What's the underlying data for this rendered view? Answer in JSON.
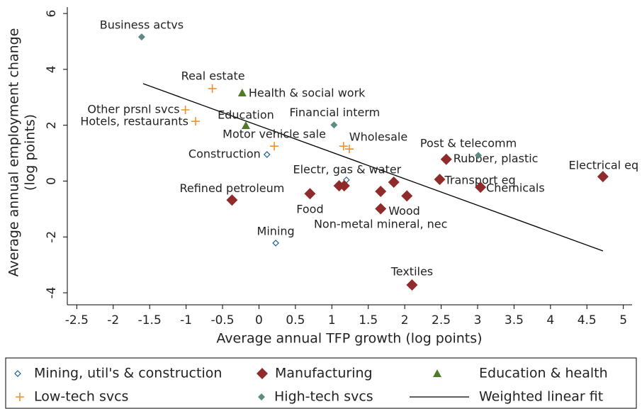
{
  "chart_data": {
    "type": "scatter",
    "xlabel": "Average annual TFP growth (log points)",
    "ylabel": [
      "Average annual employment change",
      "(log points)"
    ],
    "xlim": [
      -2.63,
      5.12
    ],
    "ylim": [
      -4.43,
      6.23
    ],
    "xticks": [
      -2.5,
      -2,
      -1.5,
      -1,
      -0.5,
      0,
      0.5,
      1,
      1.5,
      2,
      2.5,
      3,
      3.5,
      4,
      4.5,
      5
    ],
    "yticks": [
      -4,
      -2,
      0,
      2,
      4,
      6
    ],
    "series": [
      {
        "name": "Mining, util's & construction",
        "color": "#1f5f8b",
        "marker": "hollow-diamond",
        "x": [
          0.11,
          1.2,
          0.23
        ],
        "y": [
          0.95,
          0.04,
          -2.22
        ],
        "labels": [
          "Construction",
          "Electr, gas  & water",
          "Mining"
        ]
      },
      {
        "name": "Manufacturing",
        "color": "#902b2b",
        "marker": "diamond",
        "x": [
          -0.37,
          0.7,
          1.1,
          1.17,
          1.67,
          1.85,
          1.67,
          2.03,
          2.57,
          2.48,
          3.04,
          4.72,
          2.1
        ],
        "y": [
          -0.68,
          -0.45,
          -0.17,
          -0.17,
          -0.37,
          -0.04,
          -0.99,
          -0.53,
          0.78,
          0.06,
          -0.22,
          0.16,
          -3.72
        ],
        "labels": [
          "Refined petroleum",
          "Food",
          null,
          null,
          "Non-metal mineral, nec",
          null,
          "Wood",
          null,
          "Rubber, plastic",
          "Transport eq",
          "Chemicals",
          "Electrical eq",
          "Textiles"
        ]
      },
      {
        "name": "Education & health",
        "color": "#4f7a28",
        "marker": "triangle",
        "x": [
          -0.23,
          -0.18
        ],
        "y": [
          3.16,
          1.99
        ],
        "labels": [
          "Health & social work",
          "Education"
        ]
      },
      {
        "name": "Low-tech svcs",
        "color": "#f0902a",
        "marker": "plus",
        "x": [
          -0.64,
          -1.01,
          -0.87,
          0.21,
          1.16,
          1.24
        ],
        "y": [
          3.31,
          2.55,
          2.14,
          1.25,
          1.25,
          1.15
        ],
        "labels": [
          "Real estate",
          "Other prsnl svcs",
          "Hotels, restaurants",
          "Motor vehicle sale",
          "Wholesale",
          null
        ]
      },
      {
        "name": "High-tech svcs",
        "color": "#5d8b82",
        "marker": "small-diamond",
        "x": [
          -1.61,
          1.03,
          3.01
        ],
        "y": [
          5.16,
          2.01,
          0.92
        ],
        "labels": [
          "Business actvs",
          "Financial interm",
          "Post & telecomm"
        ]
      }
    ],
    "fit": {
      "name": "Weighted linear fit",
      "color": "#000000",
      "x": [
        -1.59,
        4.72
      ],
      "y": [
        3.49,
        -2.5
      ]
    }
  }
}
